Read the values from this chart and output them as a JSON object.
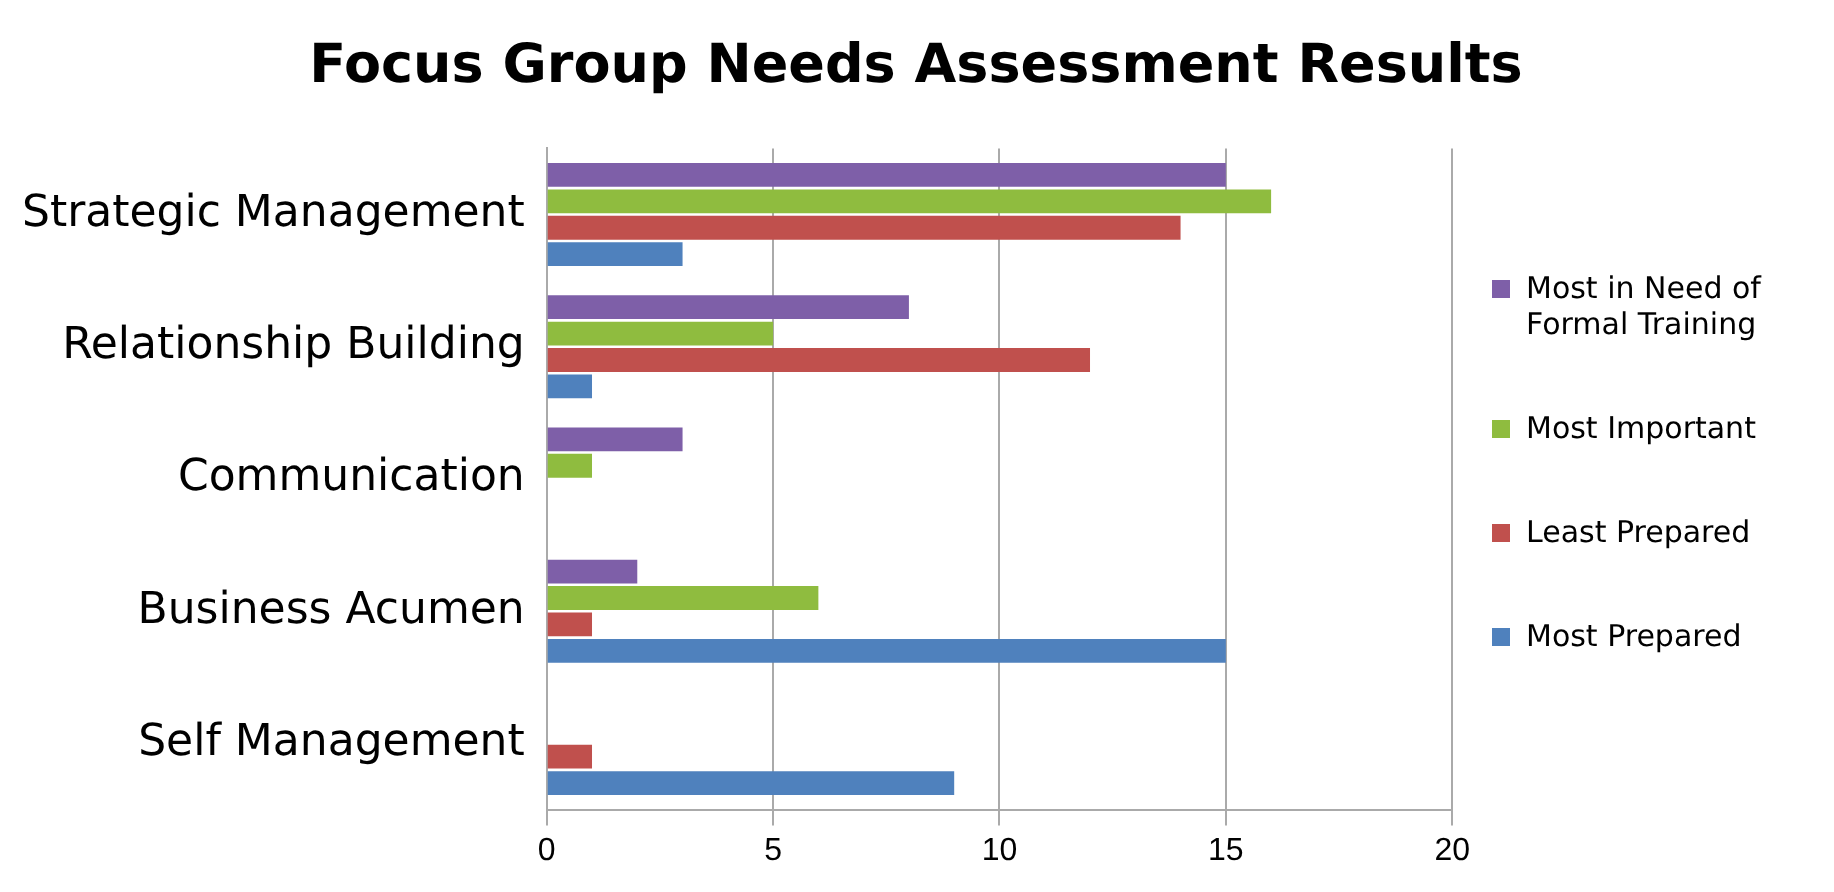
{
  "chart_data": {
    "type": "bar",
    "orientation": "horizontal",
    "title": "Focus Group Needs Assessment Results",
    "categories": [
      "Strategic Management",
      "Relationship Building",
      "Communication",
      "Business Acumen",
      "Self Management"
    ],
    "series": [
      {
        "name": "Most in Need of Formal Training",
        "color": "#7e5fa8",
        "values": [
          15,
          8,
          3,
          2,
          0
        ]
      },
      {
        "name": "Most Important",
        "color": "#8fbc3f",
        "values": [
          16,
          5,
          1,
          6,
          0
        ]
      },
      {
        "name": "Least Prepared",
        "color": "#c0504d",
        "values": [
          14,
          12,
          0,
          1,
          1
        ]
      },
      {
        "name": "Most Prepared",
        "color": "#4f81bd",
        "values": [
          3,
          1,
          0,
          15,
          9
        ]
      }
    ],
    "xlim": [
      0,
      20
    ],
    "xticks": [
      0,
      5,
      10,
      15,
      20
    ],
    "grid": "x",
    "legend": "right"
  }
}
